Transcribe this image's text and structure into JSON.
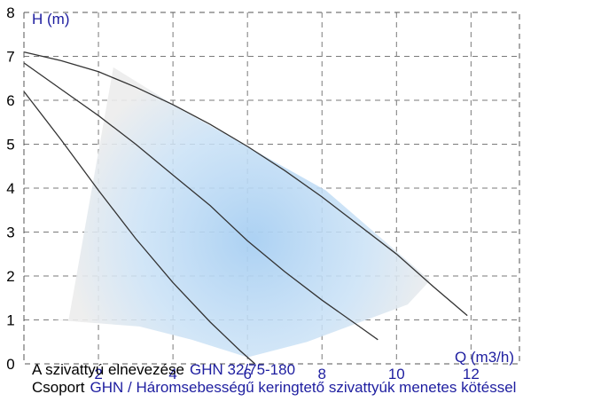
{
  "chart_data": {
    "type": "line",
    "title": "",
    "xlabel": "Q (m3/h)",
    "ylabel": "H (m)",
    "xlim": [
      0,
      13.3
    ],
    "ylim": [
      0,
      8
    ],
    "x_ticks": [
      0,
      2,
      4,
      6,
      8,
      10,
      12
    ],
    "y_ticks": [
      0,
      1,
      2,
      3,
      4,
      5,
      6,
      7,
      8
    ],
    "grid": true,
    "series": [
      {
        "x": [
          0,
          1,
          2,
          3,
          4,
          5,
          5.8,
          6.2
        ],
        "y": [
          6.2,
          5.1,
          3.95,
          2.85,
          1.85,
          0.95,
          0.3,
          0
        ]
      },
      {
        "x": [
          0,
          1,
          2,
          3,
          4,
          5,
          6,
          7,
          8,
          9,
          9.5
        ],
        "y": [
          6.85,
          6.25,
          5.65,
          5.0,
          4.3,
          3.6,
          2.8,
          2.1,
          1.45,
          0.85,
          0.55
        ]
      },
      {
        "x": [
          0,
          1,
          2,
          3,
          4,
          5,
          6,
          7,
          8,
          9,
          10,
          11,
          11.9
        ],
        "y": [
          7.1,
          6.9,
          6.65,
          6.3,
          5.9,
          5.45,
          4.95,
          4.4,
          3.8,
          3.15,
          2.5,
          1.75,
          1.1
        ]
      }
    ],
    "operating_area": {
      "x": [
        1.2,
        2.4,
        4.3,
        6.1,
        8.1,
        10.9,
        10.3,
        7.6,
        6.0,
        4.5,
        3.1,
        0.8
      ],
      "y": [
        1.0,
        6.75,
        5.75,
        4.9,
        3.95,
        1.9,
        1.35,
        0.5,
        0.15,
        0.55,
        0.85,
        1.0
      ]
    }
  },
  "info": {
    "pump_name_label": "A szivattyú elnevezése",
    "pump_name_value": "GHN 32/75-180",
    "group_label": "Csoport",
    "group_value": "GHN / Háromsebességű keringtető szivattyúk menetes kötéssel"
  },
  "colors": {
    "curve": "#333333",
    "grid": "#7a7a7a",
    "area_core": "#a8cff2",
    "area_edge": "#ebebeb",
    "info_value": "#1e1ea0",
    "axis_title": "#1e1ea0"
  }
}
